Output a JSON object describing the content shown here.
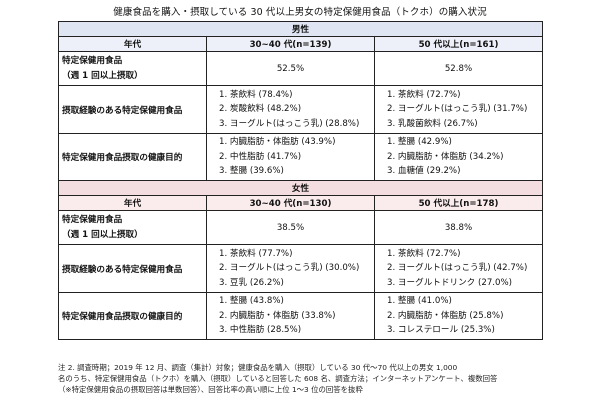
{
  "title": "健康食品を購入・摂取している 30 代以上男女の特定保健用食品（トクホ）の購入状況",
  "male": {
    "section_label": "男性",
    "header": [
      "年代",
      "30~40 代(n=139)",
      "50 代以上(n=161)"
    ],
    "rows": [
      {
        "label_line1": "特定保健用食品",
        "label_line2": "（週 1 回以上摂取）",
        "col1": "52.5%",
        "col2": "52.8%"
      },
      {
        "label": "摂取経験のある特定保健用食品",
        "col1": [
          "1.  茶飲料 (78.4%)",
          "2.  炭酸飲料 (48.2%)",
          "3.  ヨーグルト(はっこう乳) (28.8%)"
        ],
        "col2": [
          "1.  茶飲料 (72.7%)",
          "2.  ヨーグルト(はっこう乳) (31.7%)",
          "3.  乳酸菌飲料 (26.7%)"
        ]
      },
      {
        "label": "特定保健用食品摂取の健康目的",
        "col1": [
          "1.  内臓脂肪・体脂肪 (43.9%)",
          "2.  中性脂肪 (41.7%)",
          "3.  整腸 (39.6%)"
        ],
        "col2": [
          "1.  整腸 (42.9%)",
          "2.  内臓脂肪・体脂肪 (34.2%)",
          "3.  血糖値 (29.2%)"
        ]
      }
    ]
  },
  "female": {
    "section_label": "女性",
    "header": [
      "年代",
      "30~40 代(n=130)",
      "50 代以上(n=178)"
    ],
    "rows": [
      {
        "label_line1": "特定保健用食品",
        "label_line2": "（週 1 回以上摂取）",
        "col1": "38.5%",
        "col2": "38.8%"
      },
      {
        "label": "摂取経験のある特定保健用食品",
        "col1": [
          "1.  茶飲料 (77.7%)",
          "2.  ヨーグルト(はっこう乳) (30.0%)",
          "3.  豆乳 (26.2%)"
        ],
        "col2": [
          "1.  茶飲料 (72.7%)",
          "2.  ヨーグルト(はっこう乳) (42.7%)",
          "3.  ヨーグルトドリンク (27.0%)"
        ]
      },
      {
        "label": "特定保健用食品摂取の健康目的",
        "col1": [
          "1.  整腸 (43.8%)",
          "2.  内臓脂肪・体脂肪 (33.8%)",
          "3.  中性脂肪 (28.5%)"
        ],
        "col2": [
          "1.  整腸 (41.0%)",
          "2.  内臓脂肪・体脂肪 (25.8%)",
          "3.  コレステロール (25.3%)"
        ]
      }
    ]
  },
  "note": [
    "注 2. 調査時期；2019 年 12 月、調査（集計）対象；健康食品を購入（摂取）している 30 代～70 代以上の男女 1,000",
    "名のうち、特定保健用食品（トクホ）を購入（摂取）していると回答した 608 名、調査方法；インターネットアンケート、複数回答",
    "（※特定保健用食品の摂取回答は単数回答）、回答比率の高い順に上位 1～3 位の回答を抜粋"
  ]
}
